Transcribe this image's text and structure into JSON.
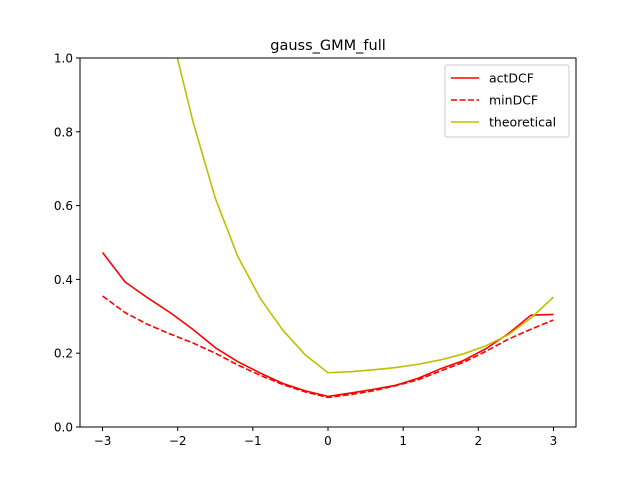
{
  "chart_data": {
    "type": "line",
    "title": "gauss_GMM_full",
    "xlabel": "",
    "ylabel": "",
    "xlim": [
      -3.3,
      3.3
    ],
    "ylim": [
      0,
      1
    ],
    "xticks": [
      -3,
      -2,
      -1,
      0,
      1,
      2,
      3
    ],
    "yticks": [
      0.0,
      0.2,
      0.4,
      0.6,
      0.8,
      1.0
    ],
    "xtick_labels": [
      "−3",
      "−2",
      "−1",
      "0",
      "1",
      "2",
      "3"
    ],
    "ytick_labels": [
      "0.0",
      "0.2",
      "0.4",
      "0.6",
      "0.8",
      "1.0"
    ],
    "grid": false,
    "legend_position": "top-right",
    "series": [
      {
        "name": "actDCF",
        "color": "#ff0000",
        "dash": "solid",
        "x": [
          -3.0,
          -2.7,
          -2.4,
          -2.1,
          -1.8,
          -1.5,
          -1.2,
          -0.9,
          -0.6,
          -0.3,
          0.0,
          0.3,
          0.6,
          0.9,
          1.2,
          1.5,
          1.8,
          2.1,
          2.4,
          2.7,
          3.0
        ],
        "y": [
          0.473,
          0.393,
          0.35,
          0.31,
          0.265,
          0.215,
          0.177,
          0.146,
          0.118,
          0.098,
          0.083,
          0.092,
          0.102,
          0.113,
          0.132,
          0.158,
          0.18,
          0.212,
          0.253,
          0.303,
          0.305
        ]
      },
      {
        "name": "minDCF",
        "color": "#ff0000",
        "dash": "dashed",
        "x": [
          -3.0,
          -2.7,
          -2.4,
          -2.1,
          -1.8,
          -1.5,
          -1.2,
          -0.9,
          -0.6,
          -0.3,
          0.0,
          0.3,
          0.6,
          0.9,
          1.2,
          1.5,
          1.8,
          2.1,
          2.4,
          2.7,
          3.0
        ],
        "y": [
          0.355,
          0.31,
          0.278,
          0.252,
          0.228,
          0.2,
          0.168,
          0.14,
          0.115,
          0.095,
          0.08,
          0.088,
          0.098,
          0.112,
          0.128,
          0.152,
          0.175,
          0.205,
          0.238,
          0.265,
          0.29
        ]
      },
      {
        "name": "theoretical",
        "color": "#bfbf00",
        "dash": "solid",
        "x": [
          -2.1,
          -1.8,
          -1.5,
          -1.2,
          -0.9,
          -0.6,
          -0.3,
          0.0,
          0.3,
          0.6,
          0.9,
          1.2,
          1.5,
          1.8,
          2.1,
          2.4,
          2.7,
          3.0
        ],
        "y": [
          1.08,
          0.83,
          0.62,
          0.462,
          0.348,
          0.262,
          0.195,
          0.147,
          0.15,
          0.155,
          0.161,
          0.17,
          0.182,
          0.198,
          0.22,
          0.25,
          0.295,
          0.352
        ]
      }
    ]
  }
}
